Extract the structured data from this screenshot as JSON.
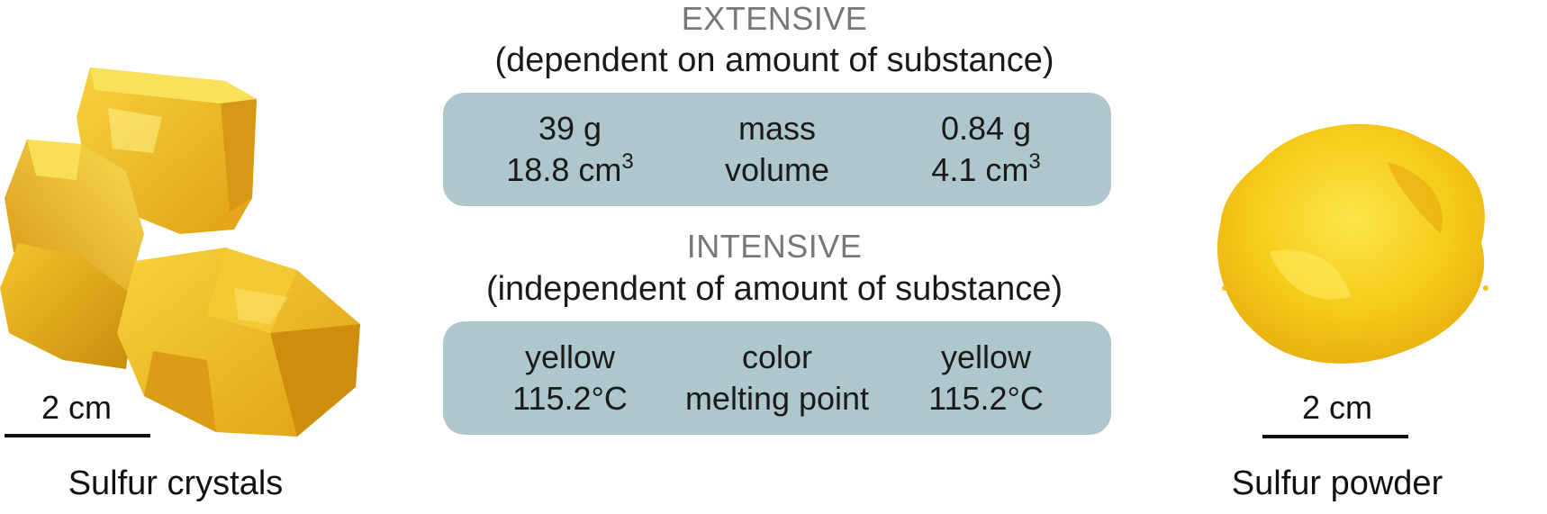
{
  "left": {
    "scale": "2 cm",
    "caption": "Sulfur crystals"
  },
  "right": {
    "scale": "2 cm",
    "caption": "Sulfur powder"
  },
  "extensive": {
    "title": "EXTENSIVE",
    "subtitle": "(dependent on amount of substance)",
    "rows": [
      {
        "left": "39 g",
        "property": "mass",
        "right": "0.84 g"
      },
      {
        "left": "18.8 cm",
        "left_sup": "3",
        "property": "volume",
        "right": "4.1 cm",
        "right_sup": "3"
      }
    ]
  },
  "intensive": {
    "title": "INTENSIVE",
    "subtitle": "(independent of amount of substance)",
    "rows": [
      {
        "left": "yellow",
        "property": "color",
        "right": "yellow"
      },
      {
        "left": "115.2°C",
        "property": "melting point",
        "right": "115.2°C"
      }
    ]
  },
  "colors": {
    "panel": "#adc7cc",
    "heading": "#777777",
    "sulfur_light": "#f7d63a",
    "sulfur_dark": "#d99a10"
  }
}
